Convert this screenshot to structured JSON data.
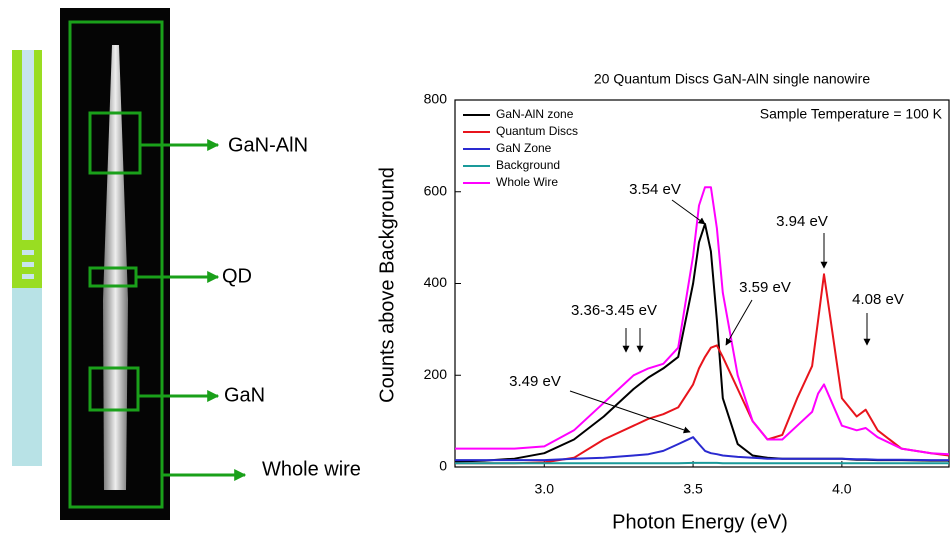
{
  "diagram": {
    "labels": [
      "GaN-AlN",
      "QD",
      "GaN",
      "Whole wire"
    ]
  },
  "chart_data": {
    "type": "line",
    "title": "20 Quantum Discs GaN-AlN single nanowire",
    "inset_text": "Sample Temperature = 100 K",
    "xlabel": "Photon Energy (eV)",
    "ylabel": "Counts above Background",
    "xlim": [
      2.7,
      4.36
    ],
    "ylim": [
      0,
      800
    ],
    "xticks": [
      {
        "value": 3,
        "label": "3.0"
      },
      3.5,
      {
        "value": 4,
        "label": "4.0"
      }
    ],
    "yticks": [
      0,
      200,
      400,
      600,
      800
    ],
    "legend": "upper-left",
    "x": [
      2.7,
      2.8,
      2.9,
      3.0,
      3.1,
      3.2,
      3.3,
      3.35,
      3.4,
      3.45,
      3.5,
      3.52,
      3.54,
      3.56,
      3.58,
      3.6,
      3.65,
      3.7,
      3.75,
      3.8,
      3.85,
      3.9,
      3.92,
      3.94,
      3.96,
      4.0,
      4.05,
      4.08,
      4.12,
      4.2,
      4.3,
      4.36
    ],
    "series": [
      {
        "name": "GaN-AlN zone",
        "color": "#000000",
        "values": [
          12,
          14,
          18,
          30,
          60,
          110,
          170,
          195,
          215,
          240,
          400,
          490,
          530,
          470,
          320,
          150,
          50,
          25,
          20,
          18,
          18,
          18,
          18,
          18,
          18,
          18,
          16,
          16,
          15,
          15,
          14,
          14
        ]
      },
      {
        "name": "Quantum Discs",
        "color": "#e8141c",
        "values": [
          8,
          8,
          8,
          10,
          20,
          60,
          90,
          105,
          115,
          130,
          180,
          215,
          240,
          260,
          265,
          240,
          170,
          100,
          60,
          70,
          150,
          220,
          320,
          420,
          330,
          150,
          110,
          125,
          80,
          40,
          30,
          25
        ]
      },
      {
        "name": "GaN Zone",
        "color": "#2a2ad0",
        "values": [
          15,
          15,
          15,
          15,
          18,
          20,
          25,
          28,
          35,
          50,
          65,
          50,
          35,
          30,
          28,
          25,
          22,
          20,
          18,
          18,
          18,
          18,
          18,
          18,
          18,
          18,
          17,
          17,
          16,
          16,
          15,
          15
        ]
      },
      {
        "name": "Background",
        "color": "#1a9a9a",
        "values": [
          8,
          8,
          8,
          8,
          8,
          8,
          8,
          8,
          8,
          8,
          9,
          9,
          9,
          9,
          9,
          8,
          8,
          8,
          8,
          8,
          8,
          8,
          8,
          8,
          8,
          8,
          8,
          8,
          8,
          8,
          8,
          8
        ]
      },
      {
        "name": "Whole Wire",
        "color": "#ff00ff",
        "values": [
          40,
          40,
          40,
          45,
          80,
          140,
          200,
          215,
          225,
          260,
          460,
          570,
          610,
          610,
          520,
          380,
          200,
          100,
          60,
          60,
          90,
          120,
          160,
          180,
          150,
          90,
          80,
          85,
          65,
          40,
          30,
          28
        ]
      }
    ],
    "annotations": [
      "3.54 eV",
      "3.94 eV",
      "3.59 eV",
      "4.08 eV",
      "3.36-3.45 eV",
      "3.49 eV"
    ]
  }
}
